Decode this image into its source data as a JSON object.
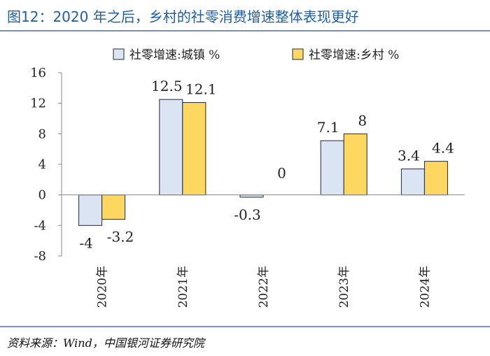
{
  "figure": {
    "title": "图12：2020 年之后，乡村的社零消费增速整体表现更好",
    "source": "资料来源：Wind，中国银河证券研究院"
  },
  "colors": {
    "title": "#1f5fa8",
    "urban": "#dbe4f3",
    "rural": "#fdd760",
    "bar_stroke": "#1f2a3d",
    "axis": "#888888"
  },
  "chart_data": {
    "type": "bar",
    "title": "",
    "xlabel": "",
    "ylabel": "",
    "categories": [
      "2020年",
      "2021年",
      "2022年",
      "2023年",
      "2024年"
    ],
    "ylim": [
      -8,
      16
    ],
    "yticks": [
      -8,
      -4,
      0,
      4,
      8,
      12,
      16
    ],
    "grid": false,
    "legend_position": "top",
    "series": [
      {
        "name": "社零增速:城镇 %",
        "color_key": "urban",
        "values": [
          -4,
          12.5,
          -0.3,
          7.1,
          3.4
        ],
        "labels": [
          "-4",
          "12.5",
          "-0.3",
          "7.1",
          "3.4"
        ]
      },
      {
        "name": "社零增速:乡村 %",
        "color_key": "rural",
        "values": [
          -3.2,
          12.1,
          0,
          8,
          4.4
        ],
        "labels": [
          "-3.2",
          "12.1",
          "0",
          "8",
          "4.4"
        ]
      }
    ]
  }
}
